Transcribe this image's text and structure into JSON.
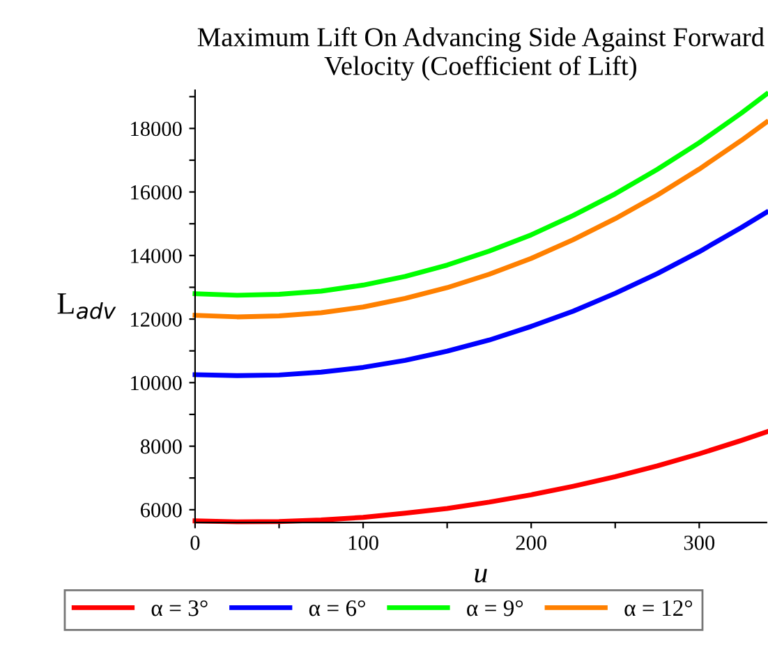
{
  "chart_data": {
    "type": "line",
    "title": "Maximum Lift On Advancing Side Against Forward\nVelocity (Coefficient of Lift)",
    "xlabel": "u",
    "ylabel": "L$_{adv}$",
    "x": [
      0,
      25,
      50,
      75,
      100,
      125,
      150,
      175,
      200,
      225,
      250,
      275,
      300,
      325,
      340
    ],
    "series": [
      {
        "name": "α = 3°",
        "color": "#ff0000",
        "values": [
          5650,
          5620,
          5630,
          5680,
          5760,
          5890,
          6040,
          6240,
          6470,
          6740,
          7040,
          7380,
          7760,
          8180,
          8450
        ]
      },
      {
        "name": "α = 6°",
        "color": "#0000ff",
        "values": [
          10250,
          10220,
          10240,
          10330,
          10480,
          10700,
          10990,
          11340,
          11770,
          12250,
          12810,
          13430,
          14120,
          14880,
          15360
        ]
      },
      {
        "name": "α = 9°",
        "color": "#00ff00",
        "values": [
          12800,
          12750,
          12780,
          12880,
          13070,
          13340,
          13700,
          14140,
          14650,
          15260,
          15940,
          16710,
          17550,
          18480,
          19080
        ]
      },
      {
        "name": "α = 12°",
        "color": "#ff8000",
        "values": [
          12120,
          12070,
          12100,
          12200,
          12380,
          12650,
          12990,
          13410,
          13910,
          14500,
          15160,
          15900,
          16720,
          17620,
          18200
        ]
      }
    ],
    "xlim": [
      0,
      340
    ],
    "ylim": [
      5600,
      19200
    ],
    "xticks": [
      0,
      {
        "value": 50,
        "label": null
      },
      100,
      {
        "value": 150,
        "label": null
      },
      200,
      {
        "value": 250,
        "label": null
      },
      300
    ],
    "yticks": [
      6000,
      {
        "value": 7000,
        "label": null
      },
      8000,
      {
        "value": 9000,
        "label": null
      },
      10000,
      {
        "value": 11000,
        "label": null
      },
      12000,
      {
        "value": 13000,
        "label": null
      },
      14000,
      {
        "value": 15000,
        "label": null
      },
      16000,
      {
        "value": 17000,
        "label": null
      },
      18000,
      {
        "value": 19000,
        "label": null
      }
    ],
    "grid": false,
    "legend": "bottom",
    "marker": "none",
    "line_style": "solid"
  }
}
